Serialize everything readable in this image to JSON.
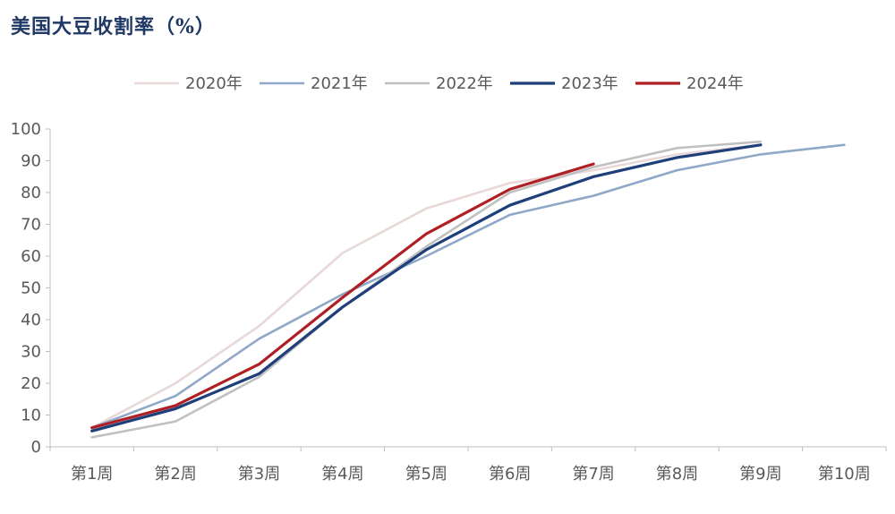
{
  "chart_data": {
    "type": "line",
    "title": "美国大豆收割率（%）",
    "xlabel": "",
    "ylabel": "",
    "categories": [
      "第1周",
      "第2周",
      "第3周",
      "第4周",
      "第5周",
      "第6周",
      "第7周",
      "第8周",
      "第9周",
      "第10周"
    ],
    "ylim": [
      0,
      100
    ],
    "yticks": [
      0,
      10,
      20,
      30,
      40,
      50,
      60,
      70,
      80,
      90,
      100
    ],
    "grid": false,
    "legend_position": "top",
    "series": [
      {
        "name": "2020年",
        "color": "#e8d8d8",
        "values": [
          6,
          20,
          38,
          61,
          75,
          83,
          87,
          92,
          95,
          null
        ]
      },
      {
        "name": "2021年",
        "color": "#8fa8c8",
        "values": [
          6,
          16,
          34,
          48,
          60,
          73,
          79,
          87,
          92,
          95
        ]
      },
      {
        "name": "2022年",
        "color": "#c0c0c0",
        "values": [
          3,
          8,
          22,
          44,
          63,
          80,
          88,
          94,
          96,
          null
        ]
      },
      {
        "name": "2023年",
        "color": "#1f3f7a",
        "values": [
          5,
          12,
          23,
          44,
          62,
          76,
          85,
          91,
          95,
          null
        ]
      },
      {
        "name": "2024年",
        "color": "#b01f24",
        "values": [
          6,
          13,
          26,
          47,
          67,
          81,
          89,
          null,
          null,
          null
        ]
      }
    ]
  }
}
